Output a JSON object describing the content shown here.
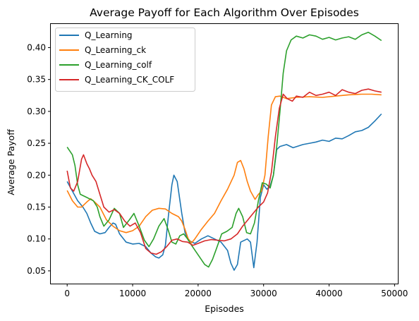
{
  "chart_data": {
    "type": "line",
    "title": "Average Payoff for Each Algorithm Over Episodes",
    "xlabel": "Episodes",
    "ylabel": "Average Payoff",
    "xlim": [
      -2500,
      50500
    ],
    "ylim": [
      0.03,
      0.437
    ],
    "xticks": [
      0,
      10000,
      20000,
      30000,
      40000,
      50000
    ],
    "xtick_labels": [
      "0",
      "10000",
      "20000",
      "30000",
      "40000",
      "50000"
    ],
    "yticks": [
      0.05,
      0.1,
      0.15,
      0.2,
      0.25,
      0.3,
      0.35,
      0.4
    ],
    "ytick_labels": [
      "0.05",
      "0.10",
      "0.15",
      "0.20",
      "0.25",
      "0.30",
      "0.35",
      "0.40"
    ],
    "grid": false,
    "legend_position": "top-left",
    "series": [
      {
        "name": "Q_Learning",
        "color": "#1f77b4",
        "points": [
          [
            0,
            0.19
          ],
          [
            800,
            0.175
          ],
          [
            1600,
            0.16
          ],
          [
            2400,
            0.15
          ],
          [
            3000,
            0.14
          ],
          [
            3600,
            0.125
          ],
          [
            4200,
            0.112
          ],
          [
            5000,
            0.108
          ],
          [
            5800,
            0.11
          ],
          [
            6400,
            0.118
          ],
          [
            7000,
            0.125
          ],
          [
            7400,
            0.123
          ],
          [
            8000,
            0.108
          ],
          [
            9000,
            0.095
          ],
          [
            10000,
            0.092
          ],
          [
            11000,
            0.093
          ],
          [
            12000,
            0.088
          ],
          [
            12800,
            0.078
          ],
          [
            13500,
            0.072
          ],
          [
            14000,
            0.07
          ],
          [
            14600,
            0.075
          ],
          [
            15000,
            0.09
          ],
          [
            15500,
            0.14
          ],
          [
            16000,
            0.185
          ],
          [
            16300,
            0.2
          ],
          [
            16800,
            0.19
          ],
          [
            17500,
            0.14
          ],
          [
            18000,
            0.11
          ],
          [
            18500,
            0.098
          ],
          [
            19500,
            0.093
          ],
          [
            20500,
            0.1
          ],
          [
            21500,
            0.105
          ],
          [
            22500,
            0.1
          ],
          [
            23500,
            0.095
          ],
          [
            24500,
            0.082
          ],
          [
            25000,
            0.062
          ],
          [
            25500,
            0.051
          ],
          [
            26000,
            0.06
          ],
          [
            26500,
            0.095
          ],
          [
            27500,
            0.1
          ],
          [
            28000,
            0.095
          ],
          [
            28500,
            0.055
          ],
          [
            29000,
            0.095
          ],
          [
            29500,
            0.165
          ],
          [
            30000,
            0.185
          ],
          [
            30500,
            0.178
          ],
          [
            31000,
            0.183
          ],
          [
            31500,
            0.2
          ],
          [
            32000,
            0.24
          ],
          [
            32500,
            0.245
          ],
          [
            33500,
            0.248
          ],
          [
            34500,
            0.243
          ],
          [
            36000,
            0.248
          ],
          [
            37000,
            0.25
          ],
          [
            38000,
            0.252
          ],
          [
            39000,
            0.255
          ],
          [
            40000,
            0.253
          ],
          [
            41000,
            0.258
          ],
          [
            42000,
            0.257
          ],
          [
            43000,
            0.262
          ],
          [
            44000,
            0.268
          ],
          [
            45000,
            0.27
          ],
          [
            46000,
            0.275
          ],
          [
            47000,
            0.285
          ],
          [
            48000,
            0.296
          ]
        ]
      },
      {
        "name": "Q_Learning_ck",
        "color": "#ff7f0e",
        "points": [
          [
            0,
            0.176
          ],
          [
            800,
            0.16
          ],
          [
            1600,
            0.15
          ],
          [
            2200,
            0.15
          ],
          [
            3000,
            0.158
          ],
          [
            3600,
            0.163
          ],
          [
            4200,
            0.158
          ],
          [
            5000,
            0.15
          ],
          [
            6000,
            0.13
          ],
          [
            7000,
            0.12
          ],
          [
            8000,
            0.113
          ],
          [
            9000,
            0.11
          ],
          [
            10000,
            0.113
          ],
          [
            11000,
            0.12
          ],
          [
            12000,
            0.135
          ],
          [
            13000,
            0.145
          ],
          [
            14000,
            0.148
          ],
          [
            15000,
            0.147
          ],
          [
            16000,
            0.14
          ],
          [
            17000,
            0.135
          ],
          [
            17500,
            0.128
          ],
          [
            18000,
            0.115
          ],
          [
            18500,
            0.1
          ],
          [
            19000,
            0.094
          ],
          [
            19500,
            0.1
          ],
          [
            20500,
            0.115
          ],
          [
            21500,
            0.128
          ],
          [
            22500,
            0.14
          ],
          [
            23500,
            0.16
          ],
          [
            24500,
            0.178
          ],
          [
            25500,
            0.2
          ],
          [
            26000,
            0.22
          ],
          [
            26500,
            0.223
          ],
          [
            27000,
            0.21
          ],
          [
            27500,
            0.19
          ],
          [
            28000,
            0.175
          ],
          [
            28700,
            0.162
          ],
          [
            29200,
            0.17
          ],
          [
            29700,
            0.175
          ],
          [
            30200,
            0.2
          ],
          [
            30700,
            0.26
          ],
          [
            31200,
            0.31
          ],
          [
            31800,
            0.323
          ],
          [
            32500,
            0.324
          ],
          [
            33500,
            0.32
          ],
          [
            35000,
            0.322
          ],
          [
            37000,
            0.323
          ],
          [
            39000,
            0.322
          ],
          [
            41000,
            0.324
          ],
          [
            43000,
            0.326
          ],
          [
            45000,
            0.327
          ],
          [
            46500,
            0.327
          ],
          [
            48000,
            0.326
          ]
        ]
      },
      {
        "name": "Q_Learning_colf",
        "color": "#2ca02c",
        "points": [
          [
            0,
            0.244
          ],
          [
            400,
            0.238
          ],
          [
            800,
            0.232
          ],
          [
            1200,
            0.215
          ],
          [
            1600,
            0.185
          ],
          [
            2000,
            0.17
          ],
          [
            3000,
            0.165
          ],
          [
            4000,
            0.16
          ],
          [
            4600,
            0.15
          ],
          [
            5000,
            0.135
          ],
          [
            5600,
            0.12
          ],
          [
            6400,
            0.13
          ],
          [
            7200,
            0.148
          ],
          [
            8000,
            0.14
          ],
          [
            8600,
            0.118
          ],
          [
            9500,
            0.13
          ],
          [
            10200,
            0.14
          ],
          [
            11000,
            0.12
          ],
          [
            11800,
            0.098
          ],
          [
            12500,
            0.088
          ],
          [
            13200,
            0.1
          ],
          [
            14000,
            0.12
          ],
          [
            14800,
            0.132
          ],
          [
            15400,
            0.115
          ],
          [
            16000,
            0.095
          ],
          [
            16600,
            0.092
          ],
          [
            17200,
            0.105
          ],
          [
            17800,
            0.108
          ],
          [
            18400,
            0.1
          ],
          [
            19000,
            0.09
          ],
          [
            20000,
            0.075
          ],
          [
            21000,
            0.06
          ],
          [
            21600,
            0.056
          ],
          [
            22200,
            0.068
          ],
          [
            22800,
            0.085
          ],
          [
            23600,
            0.108
          ],
          [
            24400,
            0.112
          ],
          [
            25200,
            0.118
          ],
          [
            25800,
            0.14
          ],
          [
            26200,
            0.148
          ],
          [
            26800,
            0.135
          ],
          [
            27400,
            0.11
          ],
          [
            28000,
            0.108
          ],
          [
            28600,
            0.125
          ],
          [
            29200,
            0.16
          ],
          [
            29800,
            0.188
          ],
          [
            30400,
            0.186
          ],
          [
            31000,
            0.18
          ],
          [
            31500,
            0.2
          ],
          [
            32000,
            0.245
          ],
          [
            32500,
            0.3
          ],
          [
            33000,
            0.36
          ],
          [
            33500,
            0.395
          ],
          [
            34200,
            0.412
          ],
          [
            35000,
            0.418
          ],
          [
            36000,
            0.415
          ],
          [
            37000,
            0.42
          ],
          [
            38000,
            0.418
          ],
          [
            39000,
            0.413
          ],
          [
            40000,
            0.416
          ],
          [
            41000,
            0.412
          ],
          [
            42000,
            0.415
          ],
          [
            43000,
            0.417
          ],
          [
            44000,
            0.413
          ],
          [
            45000,
            0.42
          ],
          [
            46000,
            0.424
          ],
          [
            47000,
            0.418
          ],
          [
            48000,
            0.411
          ]
        ]
      },
      {
        "name": "Q_Learning_CK_COLF",
        "color": "#d62728",
        "points": [
          [
            0,
            0.207
          ],
          [
            500,
            0.18
          ],
          [
            1000,
            0.175
          ],
          [
            1600,
            0.19
          ],
          [
            2200,
            0.225
          ],
          [
            2500,
            0.232
          ],
          [
            3000,
            0.218
          ],
          [
            3400,
            0.21
          ],
          [
            3800,
            0.2
          ],
          [
            4400,
            0.19
          ],
          [
            5000,
            0.17
          ],
          [
            5600,
            0.15
          ],
          [
            6400,
            0.142
          ],
          [
            7200,
            0.146
          ],
          [
            8000,
            0.14
          ],
          [
            8800,
            0.128
          ],
          [
            9600,
            0.12
          ],
          [
            10400,
            0.125
          ],
          [
            11200,
            0.11
          ],
          [
            12000,
            0.085
          ],
          [
            12800,
            0.078
          ],
          [
            13600,
            0.076
          ],
          [
            14400,
            0.08
          ],
          [
            15200,
            0.088
          ],
          [
            16000,
            0.098
          ],
          [
            16800,
            0.1
          ],
          [
            17600,
            0.096
          ],
          [
            18400,
            0.095
          ],
          [
            19200,
            0.09
          ],
          [
            20000,
            0.093
          ],
          [
            21000,
            0.097
          ],
          [
            22000,
            0.099
          ],
          [
            23000,
            0.098
          ],
          [
            24000,
            0.097
          ],
          [
            25000,
            0.1
          ],
          [
            26000,
            0.108
          ],
          [
            26800,
            0.12
          ],
          [
            27600,
            0.13
          ],
          [
            28400,
            0.14
          ],
          [
            29200,
            0.15
          ],
          [
            30000,
            0.158
          ],
          [
            30600,
            0.172
          ],
          [
            31200,
            0.205
          ],
          [
            31800,
            0.26
          ],
          [
            32400,
            0.305
          ],
          [
            33000,
            0.327
          ],
          [
            33600,
            0.32
          ],
          [
            34400,
            0.316
          ],
          [
            35000,
            0.324
          ],
          [
            36000,
            0.322
          ],
          [
            37000,
            0.33
          ],
          [
            38000,
            0.325
          ],
          [
            39000,
            0.327
          ],
          [
            40000,
            0.33
          ],
          [
            41000,
            0.325
          ],
          [
            42000,
            0.334
          ],
          [
            43000,
            0.33
          ],
          [
            44000,
            0.328
          ],
          [
            45000,
            0.333
          ],
          [
            46000,
            0.335
          ],
          [
            47000,
            0.332
          ],
          [
            48000,
            0.33
          ]
        ]
      }
    ]
  }
}
